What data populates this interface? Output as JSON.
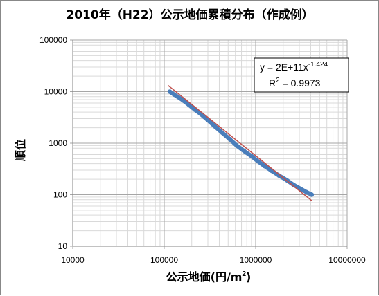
{
  "chart_data": {
    "type": "scatter",
    "title": "2010年（H22）公示地価累積分布（作成例）",
    "xlabel_main": "公示地価(円/m",
    "xlabel_sup": "2",
    "xlabel_tail": ")",
    "ylabel": "順位",
    "x_scale": "log",
    "y_scale": "log",
    "xlim": [
      10000,
      10000000
    ],
    "ylim": [
      10,
      100000
    ],
    "x_tick_labels": [
      "10000",
      "100000",
      "1000000",
      "10000000"
    ],
    "y_tick_labels": [
      "100000",
      "10000",
      "1000",
      "100",
      "10"
    ],
    "grid": "major-and-minor",
    "legend": "none",
    "series": [
      {
        "color": "#4a7ebb",
        "x": [
          115000,
          120000,
          128000,
          140000,
          160000,
          185000,
          215000,
          250000,
          300000,
          360000,
          430000,
          520000,
          620000,
          750000,
          900000,
          1050000,
          1250000,
          1500000,
          1800000,
          2200000,
          2600000,
          3100000,
          3600000,
          4100000
        ],
        "y": [
          10000,
          9500,
          8800,
          8000,
          6800,
          5600,
          4500,
          3700,
          2800,
          2100,
          1600,
          1200,
          900,
          700,
          560,
          450,
          360,
          290,
          235,
          190,
          155,
          130,
          112,
          100
        ]
      }
    ],
    "trendline": {
      "color": "#c0504d",
      "type": "power",
      "coefficient": 200000000000,
      "exponent": -1.424,
      "x_range": [
        110000,
        4100000
      ]
    },
    "equation": {
      "prefix": "y = 2E+11x",
      "exponent": "-1.424",
      "r2_label": "R",
      "r2_sup": "2",
      "r2_value": " = 0.9973"
    },
    "colors": {
      "axis": "#868686",
      "grid_major": "#a6a6a6",
      "grid_minor": "#d9d9d9"
    }
  }
}
